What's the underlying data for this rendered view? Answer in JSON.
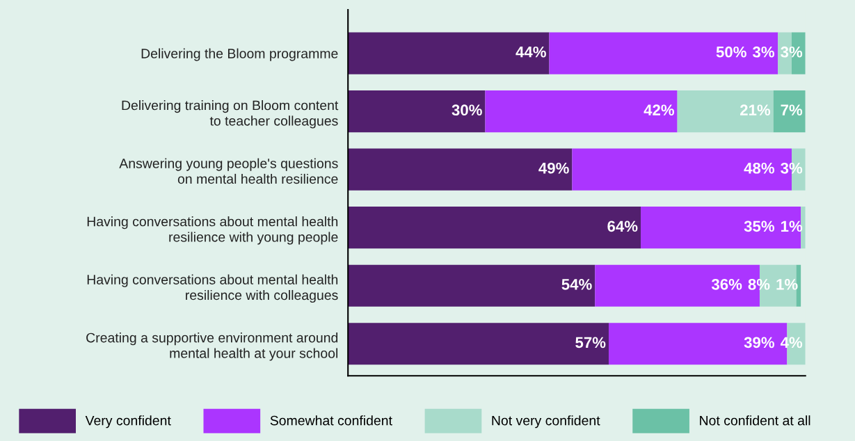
{
  "chart_data": {
    "type": "bar",
    "orientation": "horizontal",
    "stacked": true,
    "data_labels": true,
    "legend": "bottom",
    "grid": false,
    "categories": [
      "Delivering the Bloom programme",
      "Delivering training on Bloom content\nto teacher colleagues",
      "Answering young people's questions\non mental health resilience",
      "Having conversations about mental health\nresilience with young people",
      "Having conversations about mental health\nresilience with colleagues",
      "Creating a supportive environment around\nmental health at your school"
    ],
    "series": [
      {
        "name": "Very confident",
        "color": "#521f6e",
        "values": [
          44,
          30,
          49,
          64,
          54,
          57
        ],
        "value_labels": [
          "44%",
          "30%",
          "49%",
          "64%",
          "54%",
          "57%"
        ]
      },
      {
        "name": "Somewhat confident",
        "color": "#ab35ff",
        "values": [
          50,
          42,
          48,
          35,
          36,
          39
        ],
        "value_labels": [
          "50%",
          "42%",
          "48%",
          "35%",
          "36%",
          "39%"
        ]
      },
      {
        "name": "Not very confident",
        "color": "#a8dbcb",
        "values": [
          3,
          21,
          3,
          1,
          8,
          4
        ],
        "value_labels": [
          "3%",
          "21%",
          "3%",
          "1%",
          "8%",
          "4%"
        ]
      },
      {
        "name": "Not confident at all",
        "color": "#6bc1a6",
        "values": [
          3,
          7,
          0,
          0,
          1,
          0
        ],
        "value_labels": [
          "3%",
          "7%",
          null,
          null,
          "1%",
          null
        ]
      }
    ]
  }
}
